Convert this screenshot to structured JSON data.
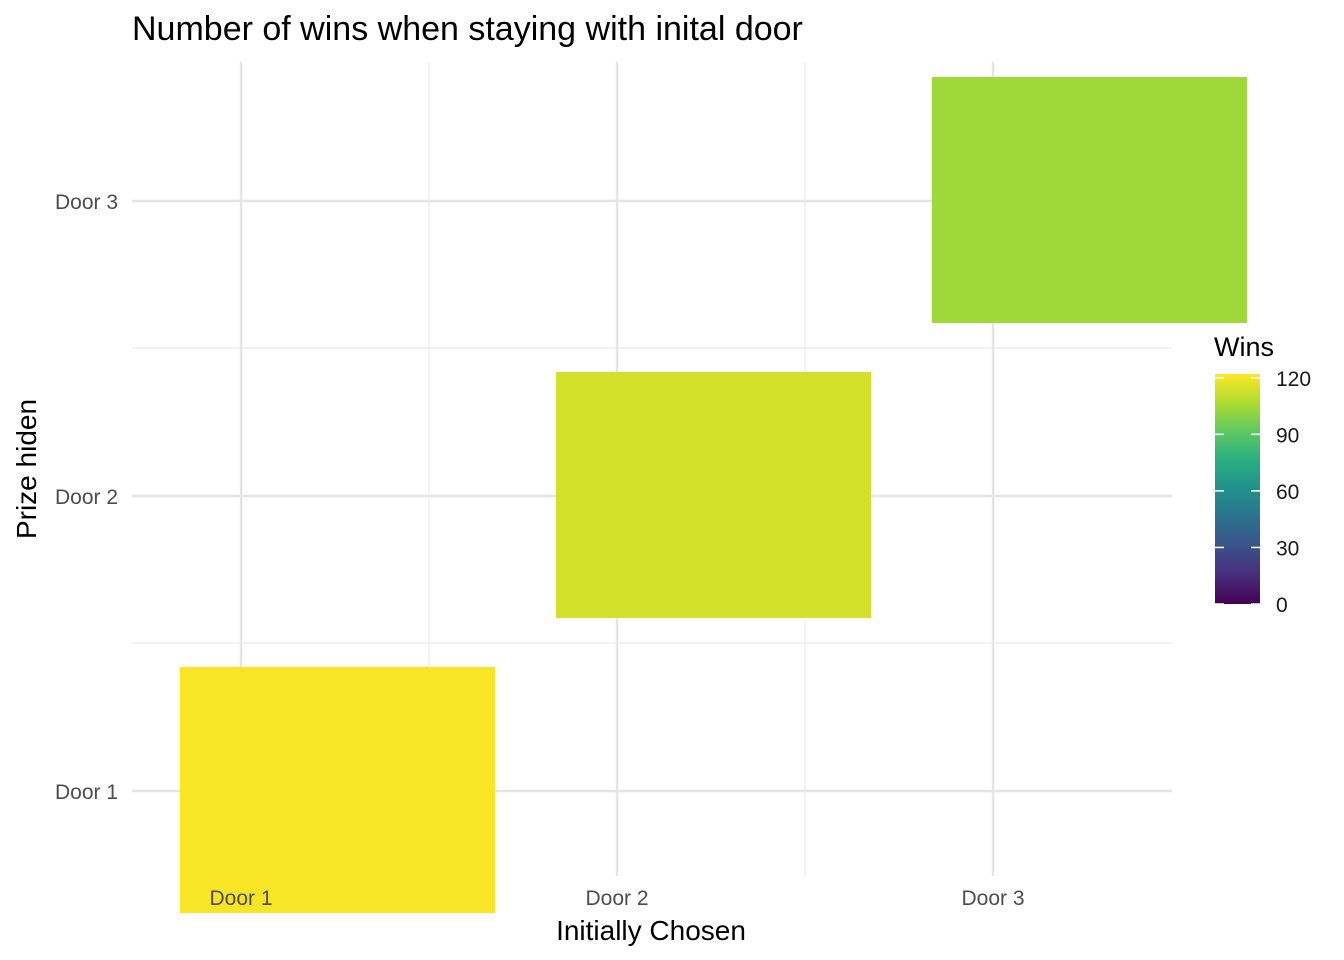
{
  "chart_data": {
    "type": "heatmap",
    "title": "Number of wins when staying with inital door",
    "xlabel": "Initially Chosen",
    "ylabel": "Prize hiden",
    "x_categories": [
      "Door 1",
      "Door 2",
      "Door 3"
    ],
    "y_categories": [
      "Door 1",
      "Door 2",
      "Door 3"
    ],
    "cells": [
      {
        "x": "Door 1",
        "y": "Door 1",
        "value": 121
      },
      {
        "x": "Door 2",
        "y": "Door 2",
        "value": 114
      },
      {
        "x": "Door 3",
        "y": "Door 3",
        "value": 104
      }
    ],
    "legend": {
      "title": "Wins",
      "position": "right",
      "ticks": [
        0,
        30,
        60,
        90,
        120
      ],
      "range": [
        0,
        122
      ],
      "colormap": "viridis"
    },
    "grid": true
  }
}
